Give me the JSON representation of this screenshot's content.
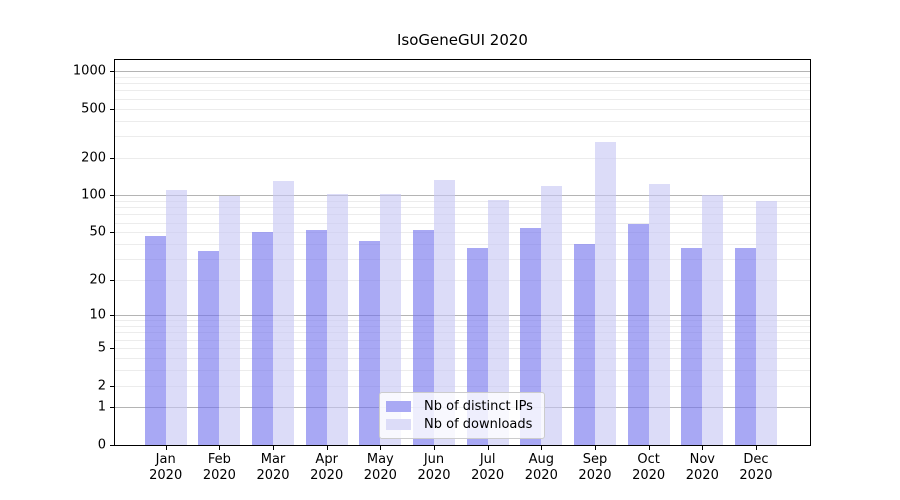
{
  "chart_data": {
    "type": "bar",
    "title": "IsoGeneGUI 2020",
    "categories": [
      "Jan",
      "Feb",
      "Mar",
      "Apr",
      "May",
      "Jun",
      "Jul",
      "Aug",
      "Sep",
      "Oct",
      "Nov",
      "Dec"
    ],
    "x_second_line": "2020",
    "series": [
      {
        "name": "Nb of distinct IPs",
        "color": "#a9a9f4",
        "fill": "rgba(115,115,237,0.62)",
        "values": [
          47,
          35,
          50,
          52,
          42,
          52,
          37,
          54,
          40,
          58,
          37,
          37
        ]
      },
      {
        "name": "Nb of downloads",
        "color": "#dcdcf8",
        "fill": "rgba(199,199,244,0.62)",
        "values": [
          110,
          99,
          131,
          103,
          102,
          132,
          92,
          118,
          270,
          123,
          100,
          90
        ]
      }
    ],
    "yscale": "log1p",
    "ylim": [
      0,
      1260
    ],
    "ytick_labels": [
      "0",
      "1",
      "2",
      "5",
      "10",
      "20",
      "50",
      "100",
      "200",
      "500",
      "1000"
    ],
    "grid": true,
    "legend_position": "lower center",
    "xlabel": "",
    "ylabel": ""
  },
  "colors": {
    "bar_dark": "#a9a9f4",
    "bar_light": "#dcdcf8",
    "grid_minor": "#ececec",
    "grid_major": "#b4b4b4",
    "spine": "#000000",
    "legend_border": "#cccccc"
  }
}
